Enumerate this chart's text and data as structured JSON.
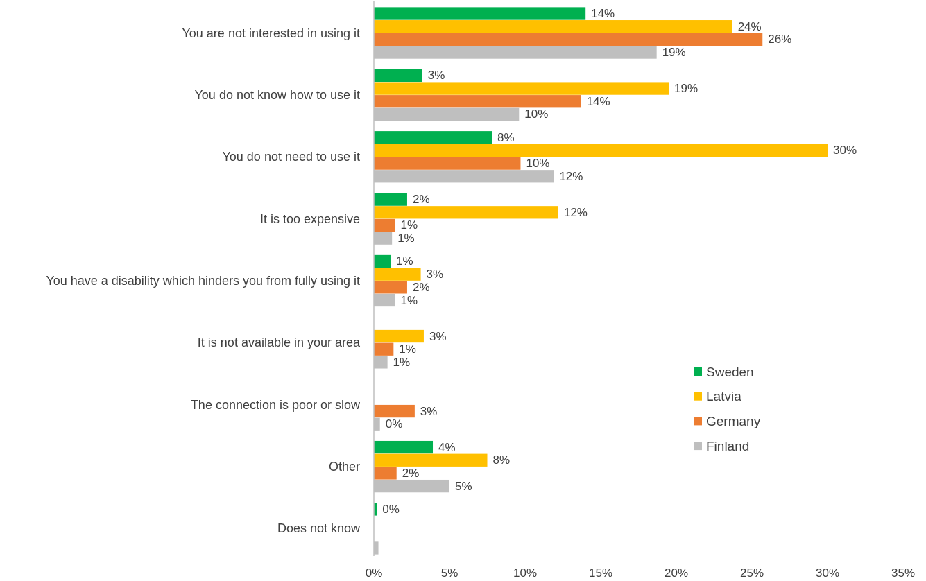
{
  "chart_data": {
    "type": "bar",
    "orientation": "horizontal",
    "categories": [
      "You are not interested in using it",
      "You do not know how to use it",
      "You do not need to use it",
      "It is too expensive",
      "You have a disability which hinders you from fully using it",
      "It is not available in your area",
      "The connection is poor or slow",
      "Other",
      "Does not know"
    ],
    "series": [
      {
        "name": "Sweden",
        "color": "#00b050",
        "values": [
          14.0,
          3.2,
          7.8,
          2.2,
          1.1,
          null,
          null,
          3.9,
          0.2
        ],
        "value_labels": [
          "14%",
          "3%",
          "8%",
          "2%",
          "1%",
          null,
          null,
          "4%",
          "0%"
        ]
      },
      {
        "name": "Latvia",
        "color": "#ffc000",
        "values": [
          23.7,
          19.5,
          30.0,
          12.2,
          3.1,
          3.3,
          null,
          7.5,
          null
        ],
        "value_labels": [
          "24%",
          "19%",
          "30%",
          "12%",
          "3%",
          "3%",
          null,
          "8%",
          null
        ]
      },
      {
        "name": "Germany",
        "color": "#ed7d31",
        "values": [
          25.7,
          13.7,
          9.7,
          1.4,
          2.2,
          1.3,
          2.7,
          1.5,
          null
        ],
        "value_labels": [
          "26%",
          "14%",
          "10%",
          "1%",
          "2%",
          "1%",
          "3%",
          "2%",
          null
        ]
      },
      {
        "name": "Finland",
        "color": "#bfbfbf",
        "values": [
          18.7,
          9.6,
          11.9,
          1.2,
          1.4,
          0.9,
          0.4,
          5.0,
          0.3
        ],
        "value_labels": [
          "19%",
          "10%",
          "12%",
          "1%",
          "1%",
          "1%",
          "0%",
          "5%",
          null
        ]
      }
    ],
    "xlim": [
      0,
      35
    ],
    "xticks": [
      {
        "value": 0,
        "label": "0%"
      },
      {
        "value": 5,
        "label": "5%"
      },
      {
        "value": 10,
        "label": "10%"
      },
      {
        "value": 15,
        "label": "15%"
      },
      {
        "value": 20,
        "label": "20%"
      },
      {
        "value": 25,
        "label": "25%"
      },
      {
        "value": 30,
        "label": "30%"
      },
      {
        "value": 35,
        "label": "35%"
      }
    ],
    "grid": false,
    "legend": "right"
  }
}
